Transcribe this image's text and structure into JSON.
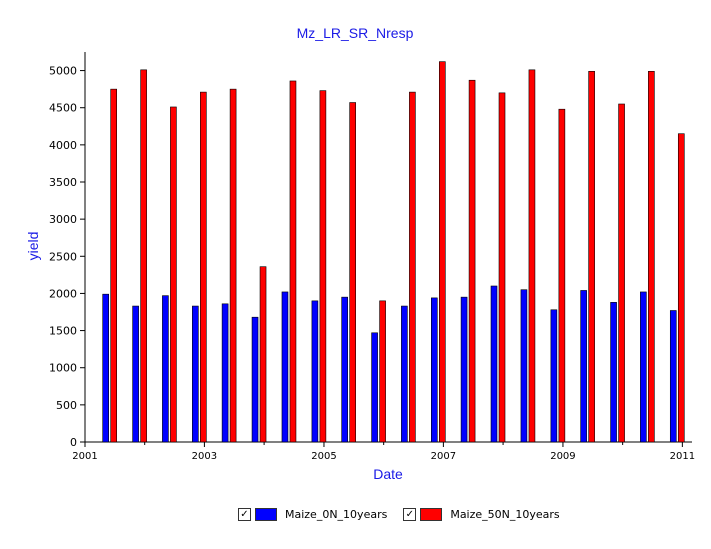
{
  "chart_data": {
    "type": "bar",
    "title": "Mz_LR_SR_Nresp",
    "xlabel": "Date",
    "ylabel": "yield",
    "ylim": [
      0,
      5250
    ],
    "xlim": [
      "2001-01-01",
      "2011-03-01"
    ],
    "yticks": [
      0,
      500,
      1000,
      1500,
      2000,
      2500,
      3000,
      3500,
      4000,
      4500,
      5000
    ],
    "xticks": [
      "2001",
      "2003",
      "2005",
      "2007",
      "2009",
      "2011"
    ],
    "grid": false,
    "legend_position": "bottom",
    "x": [
      "2001-06",
      "2001-12",
      "2002-06",
      "2002-12",
      "2003-06",
      "2003-12",
      "2004-06",
      "2004-12",
      "2005-06",
      "2005-12",
      "2006-06",
      "2006-12",
      "2007-06",
      "2007-12",
      "2008-06",
      "2008-12",
      "2009-06",
      "2009-12",
      "2010-06",
      "2010-12"
    ],
    "series": [
      {
        "name": "Maize_0N_10years",
        "color": "#0000ff",
        "values": [
          1990,
          1830,
          1970,
          1830,
          1860,
          1680,
          2020,
          1900,
          1950,
          1470,
          1830,
          1940,
          1950,
          2100,
          2050,
          1780,
          2040,
          1880,
          2020,
          1770
        ]
      },
      {
        "name": "Maize_50N_10years",
        "color": "#ff0000",
        "values": [
          4750,
          5010,
          4510,
          4710,
          4750,
          2360,
          4860,
          4730,
          4570,
          1900,
          4710,
          5120,
          4870,
          4700,
          5010,
          4480,
          4990,
          4550,
          4990,
          4150
        ]
      }
    ]
  }
}
